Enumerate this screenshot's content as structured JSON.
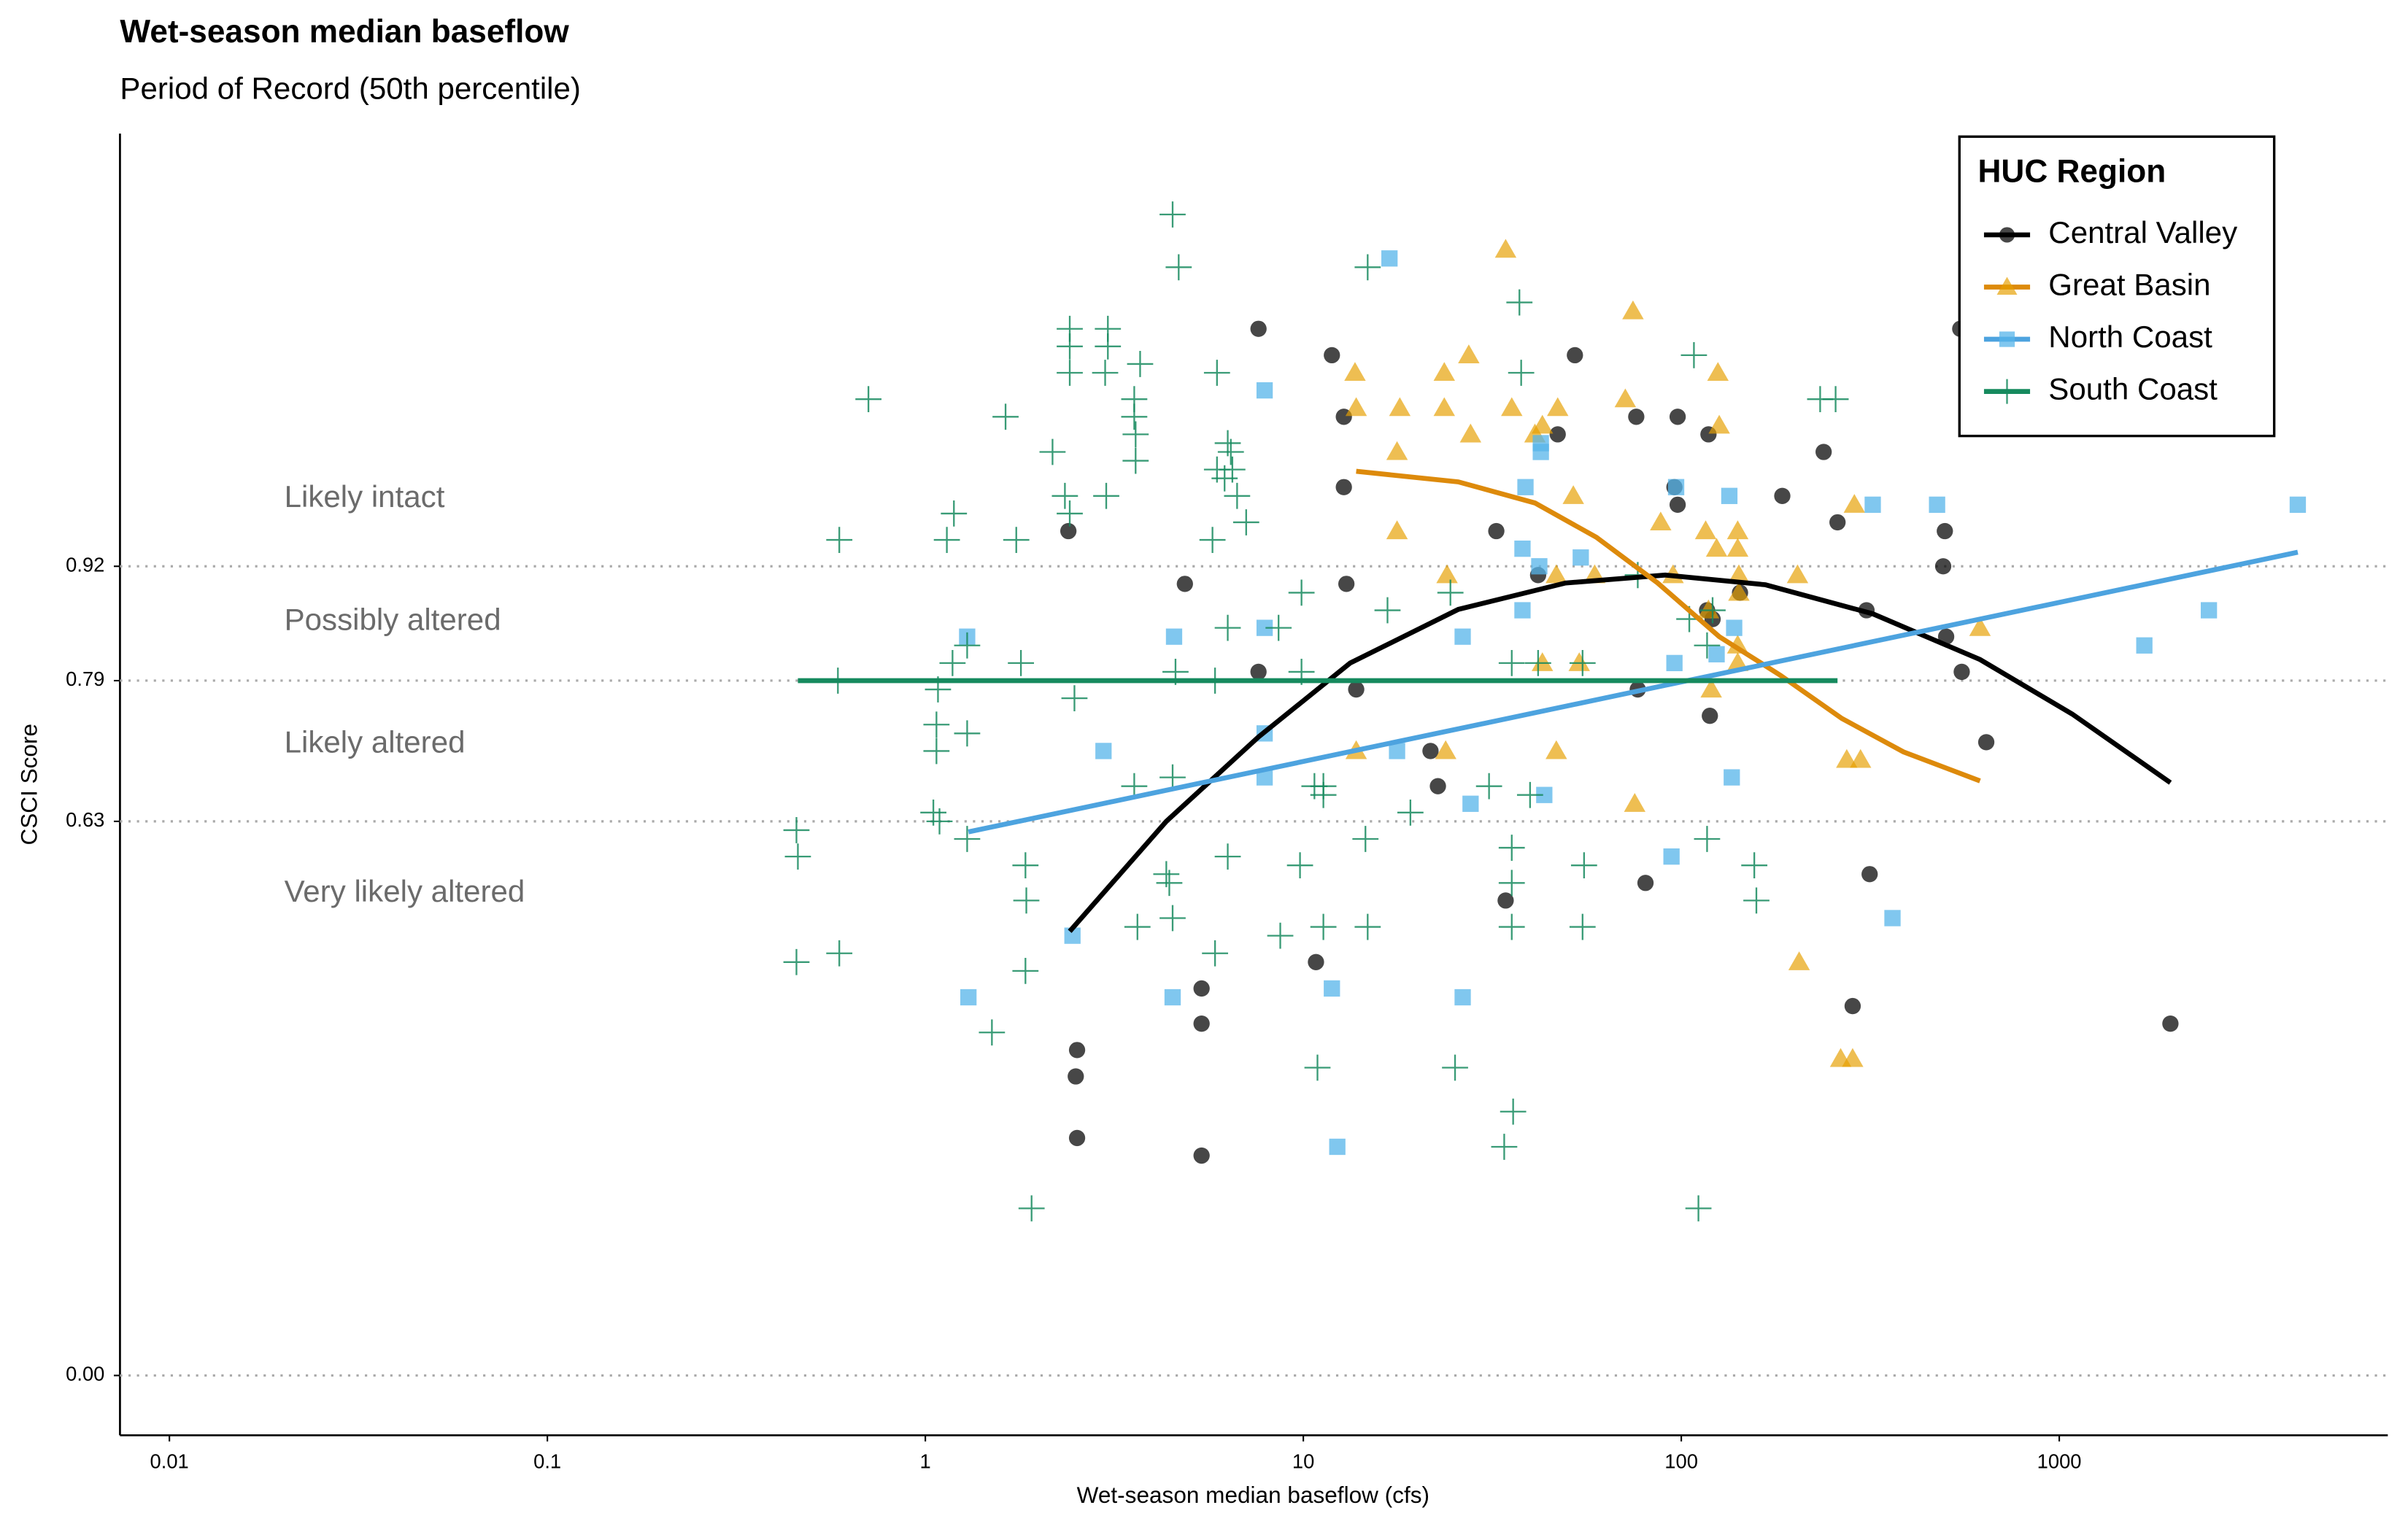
{
  "chart_data": {
    "type": "scatter",
    "title": "Wet-season median baseflow",
    "subtitle": "Period of Record (50th percentile)",
    "x_label": "Wet-season median baseflow (cfs)",
    "y_label": "CSCI Score",
    "xscale": "log",
    "xlim": [
      0.0074,
      7400
    ],
    "ylim": [
      -0.068,
      1.412
    ],
    "xticks": [
      0.01,
      0.1,
      1,
      10,
      100,
      1000
    ],
    "yticks": [
      {
        "value": 0,
        "label": "0.00"
      },
      {
        "value": 0.63,
        "label": "0.63"
      },
      {
        "value": 0.79,
        "label": "0.79"
      },
      {
        "value": 0.92,
        "label": "0.92"
      }
    ],
    "grid": "y",
    "annotations": [
      "Likely intact",
      "Possibly altered",
      "Likely altered",
      "Very likely altered"
    ],
    "legend": {
      "title": "HUC Region",
      "position": "top-right"
    },
    "series": [
      {
        "name": "Central Valley",
        "color": "#000000",
        "marker": "circle",
        "x": [
          7.61,
          11.9,
          52.3,
          12.8,
          76.0,
          97.8,
          118,
          47.1,
          12.8,
          95.9,
          97.8,
          185,
          238,
          547,
          2.39,
          32.4,
          259,
          498,
          493,
          4.86,
          13.0,
          41.8,
          143,
          309,
          502,
          117,
          121,
          7.61,
          552,
          13.8,
          76.7,
          119,
          641,
          21.7,
          22.7,
          315,
          80.4,
          34.3,
          10.8,
          5.38,
          284,
          5.38,
          1968,
          2.52,
          2.5,
          2.52,
          5.38
        ],
        "y": [
          1.19,
          1.16,
          1.16,
          1.09,
          1.09,
          1.09,
          1.07,
          1.07,
          1.01,
          1.01,
          0.99,
          1.0,
          1.05,
          1.19,
          0.96,
          0.96,
          0.97,
          0.96,
          0.92,
          0.9,
          0.9,
          0.91,
          0.89,
          0.87,
          0.84,
          0.87,
          0.86,
          0.8,
          0.8,
          0.78,
          0.78,
          0.75,
          0.72,
          0.71,
          0.67,
          0.57,
          0.56,
          0.54,
          0.47,
          0.44,
          0.42,
          0.4,
          0.4,
          0.37,
          0.34,
          0.27,
          0.25
        ],
        "fit": {
          "x": [
            2.41,
            4.34,
            7.61,
            13.3,
            25.7,
            49.4,
            90.7,
            167,
            321,
            617,
            1082,
            1968
          ],
          "y": [
            0.505,
            0.63,
            0.726,
            0.81,
            0.871,
            0.901,
            0.91,
            0.899,
            0.866,
            0.814,
            0.752,
            0.674
          ]
        }
      },
      {
        "name": "Great Basin",
        "color": "#E69F00",
        "marker": "triangle",
        "x": [
          34.3,
          74.5,
          13.7,
          23.6,
          27.4,
          125,
          13.8,
          18.0,
          23.6,
          27.7,
          35.6,
          42.9,
          47.1,
          71.1,
          126,
          17.7,
          41.0,
          17.7,
          51.8,
          88.2,
          116,
          141,
          141,
          124,
          287,
          24.0,
          46.7,
          59.0,
          95.1,
          203,
          142,
          118,
          141,
          141,
          617,
          42.9,
          53.7,
          120,
          13.8,
          23.8,
          46.7,
          274,
          298,
          75.3,
          205,
          264,
          284,
          142
        ],
        "y": [
          1.28,
          1.21,
          1.14,
          1.14,
          1.16,
          1.14,
          1.1,
          1.1,
          1.1,
          1.07,
          1.1,
          1.08,
          1.1,
          1.11,
          1.08,
          1.05,
          1.07,
          0.96,
          1.0,
          0.97,
          0.96,
          0.96,
          0.94,
          0.94,
          0.99,
          0.91,
          0.91,
          0.91,
          0.91,
          0.91,
          0.89,
          0.87,
          0.83,
          0.81,
          0.85,
          0.81,
          0.81,
          0.78,
          0.71,
          0.71,
          0.71,
          0.7,
          0.7,
          0.65,
          0.47,
          0.36,
          0.36,
          0.91
        ],
        "fit": {
          "x": [
            13.8,
            25.7,
            41.0,
            59.6,
            86.6,
            126,
            183,
            266,
            387,
            617
          ],
          "y": [
            1.028,
            1.016,
            0.992,
            0.953,
            0.901,
            0.84,
            0.796,
            0.747,
            0.709,
            0.676
          ]
        }
      },
      {
        "name": "North Coast",
        "color": "#56B4E9",
        "marker": "square",
        "x": [
          16.9,
          7.9,
          96.9,
          134,
          321,
          475,
          4276,
          38.7,
          42.5,
          38.0,
          54.2,
          42.1,
          1.29,
          4.55,
          7.9,
          38.0,
          26.4,
          95.9,
          124,
          1679,
          2488,
          7.9,
          2.96,
          17.7,
          7.9,
          27.7,
          43.4,
          136,
          94.2,
          362,
          2.45,
          1.3,
          4.51,
          11.9,
          26.4,
          12.3,
          138,
          42.5
        ],
        "y": [
          1.27,
          1.12,
          1.01,
          1.0,
          0.99,
          0.99,
          0.99,
          1.01,
          1.06,
          0.94,
          0.93,
          0.92,
          0.84,
          0.84,
          0.85,
          0.87,
          0.84,
          0.81,
          0.82,
          0.83,
          0.87,
          0.73,
          0.71,
          0.71,
          0.68,
          0.65,
          0.66,
          0.68,
          0.59,
          0.52,
          0.5,
          0.43,
          0.43,
          0.44,
          0.43,
          0.26,
          0.85,
          1.05
        ],
        "fit": {
          "x": [
            1.3,
            4276
          ],
          "y": [
            0.618,
            0.936
          ]
        }
      },
      {
        "name": "South Coast",
        "color": "#168A5E",
        "marker": "plus",
        "x": [
          4.51,
          4.68,
          14.8,
          37.3,
          2.41,
          3.04,
          2.41,
          3.04,
          2.41,
          2.99,
          3.7,
          5.91,
          108,
          37.7,
          0.707,
          3.57,
          3.57,
          1.63,
          233,
          256,
          3.6,
          2.17,
          3.6,
          6.31,
          6.43,
          5.91,
          6.49,
          6.19,
          2.34,
          3.01,
          6.68,
          1.19,
          2.41,
          7.06,
          0.592,
          1.14,
          1.74,
          5.75,
          76.7,
          24.5,
          9.89,
          16.7,
          105,
          121,
          1.29,
          1.18,
          1.79,
          6.31,
          8.6,
          0.587,
          1.08,
          2.48,
          4.59,
          5.84,
          9.89,
          35.6,
          41.8,
          54.8,
          117,
          1.07,
          1.29,
          1.07,
          1.05,
          1.09,
          1.29,
          3.57,
          4.51,
          11.3,
          11.3,
          10.7,
          19.2,
          31.0,
          39.8,
          0.456,
          0.46,
          1.84,
          4.34,
          4.42,
          6.31,
          9.8,
          14.6,
          35.6,
          35.6,
          55.3,
          117,
          156,
          158,
          1.85,
          3.64,
          4.51,
          5.84,
          8.69,
          11.3,
          14.8,
          35.6,
          54.8,
          0.456,
          0.592,
          1.84,
          1.5,
          10.9,
          25.2,
          35.9,
          34.0,
          1.91,
          111
        ],
        "y": [
          1.32,
          1.26,
          1.26,
          1.22,
          1.19,
          1.19,
          1.17,
          1.17,
          1.14,
          1.14,
          1.15,
          1.14,
          1.16,
          1.14,
          1.11,
          1.11,
          1.09,
          1.09,
          1.11,
          1.11,
          1.07,
          1.05,
          1.04,
          1.06,
          1.05,
          1.03,
          1.03,
          1.02,
          1.0,
          1.0,
          1.0,
          0.98,
          0.98,
          0.97,
          0.95,
          0.95,
          0.95,
          0.95,
          0.91,
          0.89,
          0.89,
          0.87,
          0.86,
          0.87,
          0.83,
          0.81,
          0.81,
          0.85,
          0.85,
          0.79,
          0.78,
          0.77,
          0.8,
          0.79,
          0.8,
          0.81,
          0.81,
          0.81,
          0.83,
          0.74,
          0.73,
          0.71,
          0.64,
          0.63,
          0.61,
          0.67,
          0.68,
          0.66,
          0.67,
          0.67,
          0.64,
          0.67,
          0.66,
          0.62,
          0.59,
          0.58,
          0.57,
          0.56,
          0.59,
          0.58,
          0.61,
          0.6,
          0.56,
          0.58,
          0.61,
          0.58,
          0.54,
          0.54,
          0.51,
          0.52,
          0.48,
          0.5,
          0.51,
          0.51,
          0.51,
          0.51,
          0.47,
          0.48,
          0.46,
          0.39,
          0.35,
          0.35,
          0.3,
          0.26,
          0.19,
          0.19
        ],
        "fit": {
          "x": [
            0.46,
            259
          ],
          "y": [
            0.79,
            0.79
          ]
        }
      }
    ]
  }
}
